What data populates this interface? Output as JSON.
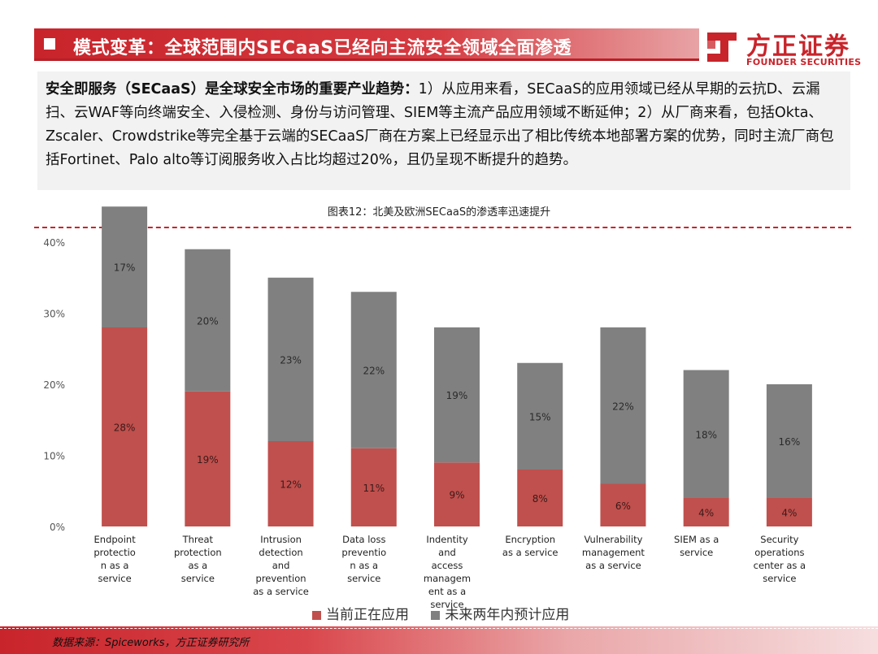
{
  "header": {
    "title": "模式变革：全球范围内SECaaS已经向主流安全领域全面渗透"
  },
  "logo": {
    "name_cn": "方正证券",
    "name_en": "FOUNDER SECURITIES",
    "color": "#c8242b"
  },
  "summary": {
    "lead": "安全即服务（SECaaS）是全球安全市场的重要产业趋势：",
    "body": "1）从应用来看，SECaaS的应用领域已经从早期的云抗D、云漏扫、云WAF等向终端安全、入侵检测、身份与访问管理、SIEM等主流产品应用领域不断延伸；2）从厂商来看，包括Okta、Zscaler、Crowdstrike等完全基于云端的SECaaS厂商在方案上已经显示出了相比传统本地部署方案的优势，同时主流厂商包括Fortinet、Palo alto等订阅服务收入占比均超过20%，且仍呈现不断提升的趋势。"
  },
  "chart_title": "图表12：北美及欧洲SECaaS的渗透率迅速提升",
  "chart_data": {
    "type": "bar",
    "stacked": true,
    "categories": [
      [
        "Endpoint",
        "protectio",
        "n as a",
        "service"
      ],
      [
        "Threat",
        "protection",
        "as a",
        "service"
      ],
      [
        "Intrusion",
        "detection",
        "and",
        "prevention",
        "as a service"
      ],
      [
        "Data loss",
        "preventio",
        "n as a",
        "service"
      ],
      [
        "Indentity",
        "and",
        "access",
        "managem",
        "ent as a",
        "service"
      ],
      [
        "Encryption",
        "as a service"
      ],
      [
        "Vulnerability",
        "management",
        "as a service"
      ],
      [
        "SIEM as a",
        "service"
      ],
      [
        "Security",
        "operations",
        "center as a",
        "service"
      ]
    ],
    "series": [
      {
        "name": "当前正在应用",
        "color": "#c0504d",
        "values": [
          28,
          19,
          12,
          11,
          9,
          8,
          6,
          4,
          4
        ],
        "labels": [
          "28%",
          "19%",
          "12%",
          "11%",
          "9%",
          "8%",
          "6%",
          "4%",
          "4%"
        ]
      },
      {
        "name": "未来两年内预计应用",
        "color": "#808080",
        "values": [
          17,
          20,
          23,
          22,
          19,
          15,
          22,
          18,
          16
        ],
        "labels": [
          "17%",
          "20%",
          "23%",
          "22%",
          "19%",
          "15%",
          "22%",
          "18%",
          "16%"
        ]
      }
    ],
    "ylim": [
      0,
      40
    ],
    "yticks": [
      "0%",
      "10%",
      "20%",
      "30%",
      "40%"
    ],
    "grid": false,
    "legend_position": "bottom"
  },
  "source": "数据来源：Spiceworks，方正证券研究所"
}
